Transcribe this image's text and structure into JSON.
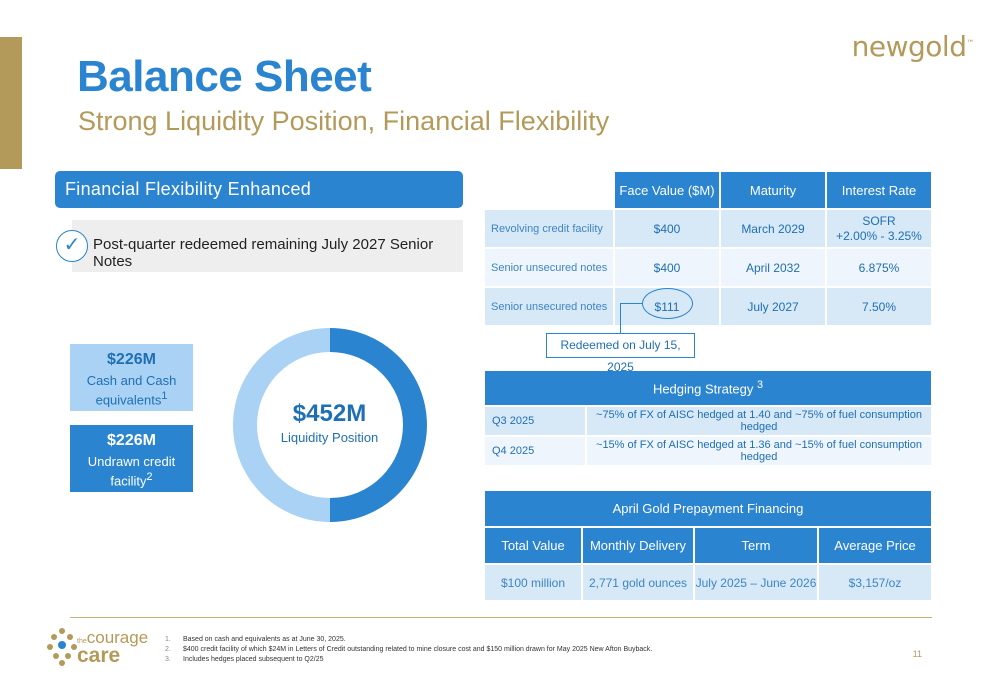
{
  "header": {
    "title": "Balance Sheet",
    "subtitle": "Strong Liquidity Position, Financial Flexibility",
    "logo_text": "newgold",
    "logo_mark": "™"
  },
  "left": {
    "banner": "Financial Flexibility Enhanced",
    "check_icon": "✓",
    "note": "Post-quarter redeemed remaining July 2027 Senior Notes",
    "cash": {
      "amount": "$226M",
      "label": "Cash and Cash equivalents",
      "sup": "1"
    },
    "credit": {
      "amount": "$226M",
      "label": "Undrawn credit facility",
      "sup": "2"
    },
    "donut": {
      "amount": "$452M",
      "label": "Liquidity Position",
      "share_cash": 0.5,
      "color_cash": "#a9d2f5",
      "color_credit": "#2a84cf"
    }
  },
  "debt_table": {
    "headers": [
      "",
      "Face Value ($M)",
      "Maturity",
      "Interest Rate"
    ],
    "rows": [
      {
        "name": "Revolving credit facility",
        "face": "$400",
        "maturity": "March 2029",
        "rate_line1": "SOFR",
        "rate_line2": "+2.00% - 3.25%"
      },
      {
        "name": "Senior unsecured notes",
        "face": "$400",
        "maturity": "April 2032",
        "rate": "6.875%"
      },
      {
        "name": "Senior unsecured notes",
        "face": "$111",
        "maturity": "July 2027",
        "rate": "7.50%"
      }
    ],
    "callout": "Redeemed on July 15, 2025"
  },
  "hedging": {
    "title": "Hedging Strategy",
    "title_sup": "3",
    "rows": [
      {
        "period": "Q3 2025",
        "desc": "~75% of FX of AISC hedged at 1.40 and ~75% of fuel consumption hedged"
      },
      {
        "period": "Q4 2025",
        "desc": "~15% of FX of AISC hedged at 1.36 and ~15% of fuel consumption hedged"
      }
    ]
  },
  "prepay": {
    "title": "April Gold Prepayment Financing",
    "headers": [
      "Total Value",
      "Monthly Delivery",
      "Term",
      "Average Price"
    ],
    "row": [
      "$100 million",
      "2,771 gold ounces",
      "July 2025 – June 2026",
      "$3,157/oz"
    ]
  },
  "footer": {
    "cc_the": "the",
    "cc_courage": "courage",
    "cc_care": "care",
    "footnotes": [
      {
        "n": "1.",
        "text": "Based on cash and equivalents as at June 30, 2025."
      },
      {
        "n": "2.",
        "text": "$400 credit facility of which $24M in Letters of Credit outstanding related to mine closure cost and $150 million drawn for May 2025 New Afton Buyback."
      },
      {
        "n": "3.",
        "text": "Includes hedges placed subsequent to Q2/25"
      }
    ],
    "page_number": "11"
  }
}
